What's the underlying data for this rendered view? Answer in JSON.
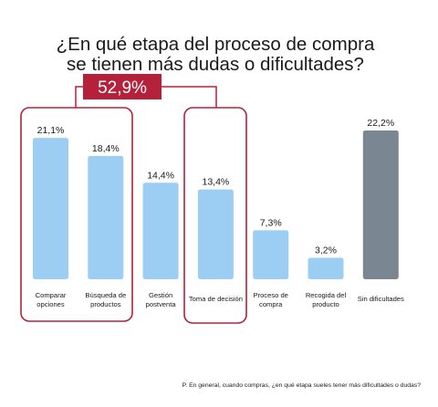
{
  "chart_data": {
    "type": "bar",
    "title_lines": [
      "¿En qué etapa del proceso de compra",
      "se tienen más dudas o dificultades?"
    ],
    "categories": [
      [
        "Comparar",
        "opciones"
      ],
      [
        "Búsqueda de",
        "productos"
      ],
      [
        "Gestión",
        "postventa"
      ],
      [
        "Toma de decisión"
      ],
      [
        "Proceso de",
        "compra"
      ],
      [
        "Recogida del",
        "producto"
      ],
      [
        "Sin dificultades"
      ]
    ],
    "values": [
      21.1,
      18.4,
      14.4,
      13.4,
      7.3,
      3.2,
      22.2
    ],
    "value_labels": [
      "21,1%",
      "18,4%",
      "14,4%",
      "13,4%",
      "7,3%",
      "3,2%",
      "22,2%"
    ],
    "ylim": [
      0,
      22.2
    ],
    "grid": false,
    "colors": {
      "bar": "#9ccdf2",
      "bar_highlight": "#7a8792",
      "highlight": "#b5213a"
    },
    "highlight_total": "52,9%",
    "footnote": "P. En general, cuando compras, ¿en qué etapa sueles tener más dificultades o dudas?"
  }
}
